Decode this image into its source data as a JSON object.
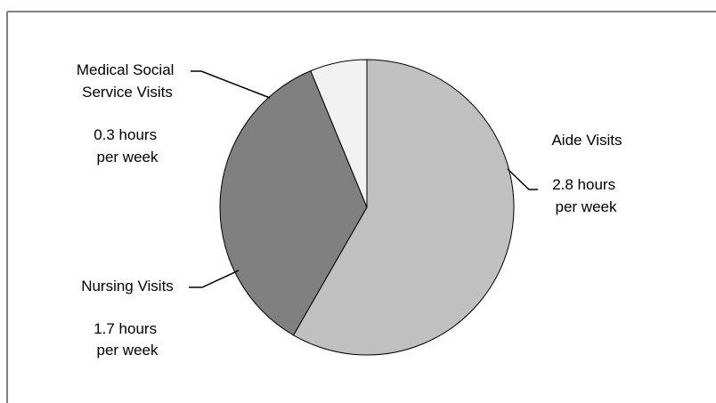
{
  "chart_data": {
    "type": "pie",
    "units": "hours per week",
    "slices": [
      {
        "name_lines": [
          "Aide Visits"
        ],
        "value": 2.8,
        "value_lines": [
          "2.8 hours",
          "per week"
        ],
        "color": "#c0c0c0"
      },
      {
        "name_lines": [
          "Nursing Visits"
        ],
        "value": 1.7,
        "value_lines": [
          "1.7 hours",
          "per week"
        ],
        "color": "#808080"
      },
      {
        "name_lines": [
          "Medical Social",
          "Service Visits"
        ],
        "value": 0.3,
        "value_lines": [
          "0.3 hours",
          "per week"
        ],
        "color": "#f2f2f2"
      }
    ],
    "start_angle_deg": 0,
    "direction": "clockwise",
    "slice_outline_color": "#000000",
    "frame_color": "#808080"
  }
}
